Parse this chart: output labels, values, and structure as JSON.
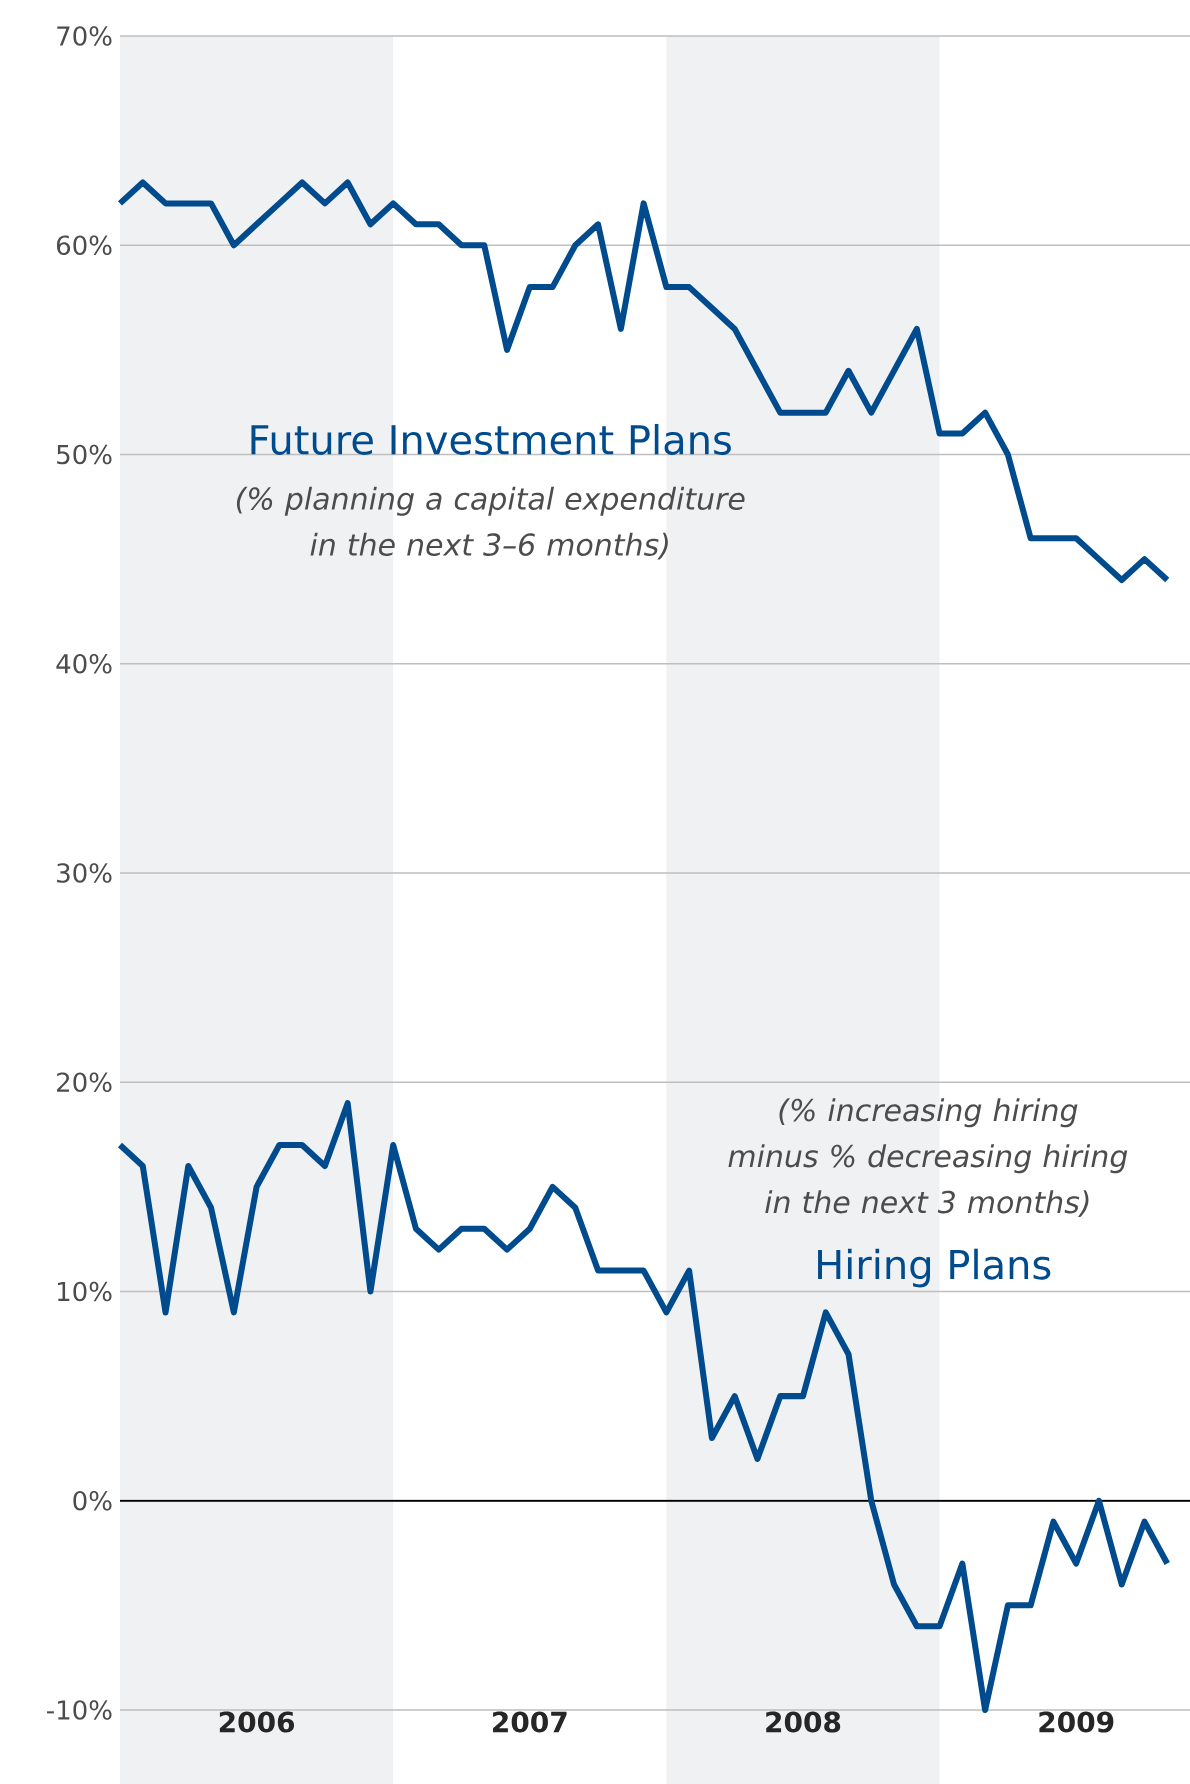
{
  "chart_data": {
    "type": "line",
    "x": [
      "2006-01",
      "2006-02",
      "2006-03",
      "2006-04",
      "2006-05",
      "2006-06",
      "2006-07",
      "2006-08",
      "2006-09",
      "2006-10",
      "2006-11",
      "2006-12",
      "2007-01",
      "2007-02",
      "2007-03",
      "2007-04",
      "2007-05",
      "2007-06",
      "2007-07",
      "2007-08",
      "2007-09",
      "2007-10",
      "2007-11",
      "2007-12",
      "2008-01",
      "2008-02",
      "2008-03",
      "2008-04",
      "2008-05",
      "2008-06",
      "2008-07",
      "2008-08",
      "2008-09",
      "2008-10",
      "2008-11",
      "2008-12",
      "2009-01",
      "2009-02",
      "2009-03",
      "2009-04",
      "2009-05",
      "2009-06",
      "2009-07",
      "2009-08",
      "2009-09",
      "2009-10",
      "2009-11"
    ],
    "series": [
      {
        "name": "Future Investment Plans",
        "color": "#004b8d",
        "values": [
          62,
          63,
          62,
          62,
          62,
          60,
          61,
          62,
          63,
          62,
          63,
          61,
          62,
          61,
          61,
          60,
          60,
          55,
          58,
          58,
          60,
          61,
          56,
          62,
          58,
          58,
          57,
          56,
          54,
          52,
          52,
          52,
          54,
          52,
          54,
          56,
          51,
          51,
          52,
          50,
          46,
          46,
          46,
          45,
          44,
          45,
          44
        ]
      },
      {
        "name": "Hiring Plans",
        "color": "#004b8d",
        "values": [
          17,
          16,
          9,
          16,
          14,
          9,
          15,
          17,
          17,
          16,
          19,
          10,
          17,
          13,
          12,
          13,
          13,
          12,
          13,
          15,
          14,
          11,
          11,
          11,
          9,
          11,
          3,
          5,
          2,
          5,
          5,
          9,
          7,
          0,
          -4,
          -6,
          -6,
          -3,
          -10,
          -5,
          -5,
          -1,
          -3,
          0,
          -4,
          -1,
          -3
        ]
      }
    ],
    "xlim": [
      "2006-01",
      "2009-12"
    ],
    "xticks": [
      {
        "value": "2006-07",
        "label": "2006"
      },
      {
        "value": "2007-07",
        "label": "2007"
      },
      {
        "value": "2008-07",
        "label": "2008"
      },
      {
        "value": "2009-07",
        "label": "2009"
      }
    ],
    "ylim": [
      -10,
      70
    ],
    "yticks": [
      {
        "value": -10,
        "label": "-10%"
      },
      {
        "value": 0,
        "label": "0%"
      },
      {
        "value": 10,
        "label": "10%"
      },
      {
        "value": 20,
        "label": "20%"
      },
      {
        "value": 30,
        "label": "30%"
      },
      {
        "value": 40,
        "label": "40%"
      },
      {
        "value": 50,
        "label": "50%"
      },
      {
        "value": 60,
        "label": "60%"
      },
      {
        "value": 70,
        "label": "70%"
      }
    ],
    "grid": "y",
    "line_style": "solid",
    "ref_lines": [
      {
        "axis": "y",
        "value": 0,
        "color": "#000000"
      }
    ],
    "bands": [
      {
        "axis": "x",
        "from": "2006-01",
        "to": "2007-01",
        "color": "#f0f1f3"
      },
      {
        "axis": "x",
        "from": "2008-01",
        "to": "2009-01",
        "color": "#f0f1f3"
      }
    ],
    "annotations": [
      "(% planning a capital expenditure in the next 3–6 months)",
      "(% increasing hiring minus % decreasing hiring in the next 3 months)"
    ]
  }
}
